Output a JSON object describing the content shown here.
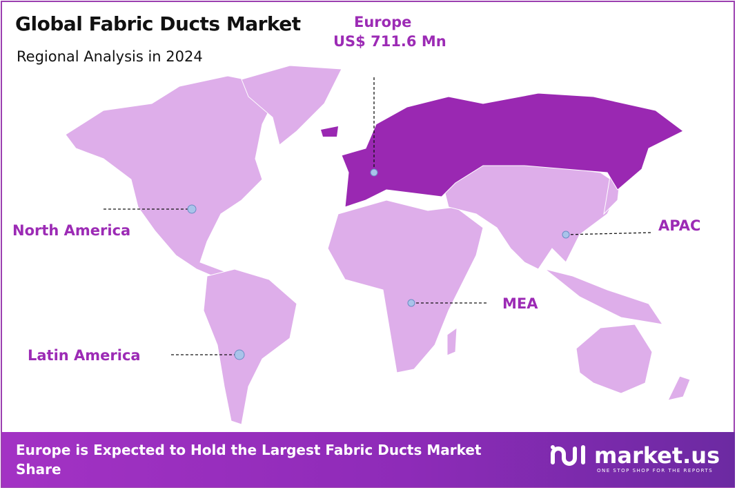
{
  "title": "Global Fabric Ducts Market",
  "subtitle": "Regional Analysis in 2024",
  "colors": {
    "region_light": "#deaeea",
    "region_highlight": "#9a28b2",
    "label": "#9c2bb5",
    "marker": "#a9c3ea"
  },
  "highlight": {
    "region": "Europe",
    "value": "US$ 711.6 Mn"
  },
  "regions": [
    {
      "label": "North America",
      "highlighted": false
    },
    {
      "label": "Europe",
      "highlighted": true
    },
    {
      "label": "APAC",
      "highlighted": false
    },
    {
      "label": "MEA",
      "highlighted": false
    },
    {
      "label": "Latin America",
      "highlighted": false
    }
  ],
  "footer": {
    "text": "Europe is Expected to Hold the Largest Fabric Ducts Market Share",
    "brand": "market.us",
    "tagline": "ONE STOP SHOP FOR THE REPORTS"
  }
}
